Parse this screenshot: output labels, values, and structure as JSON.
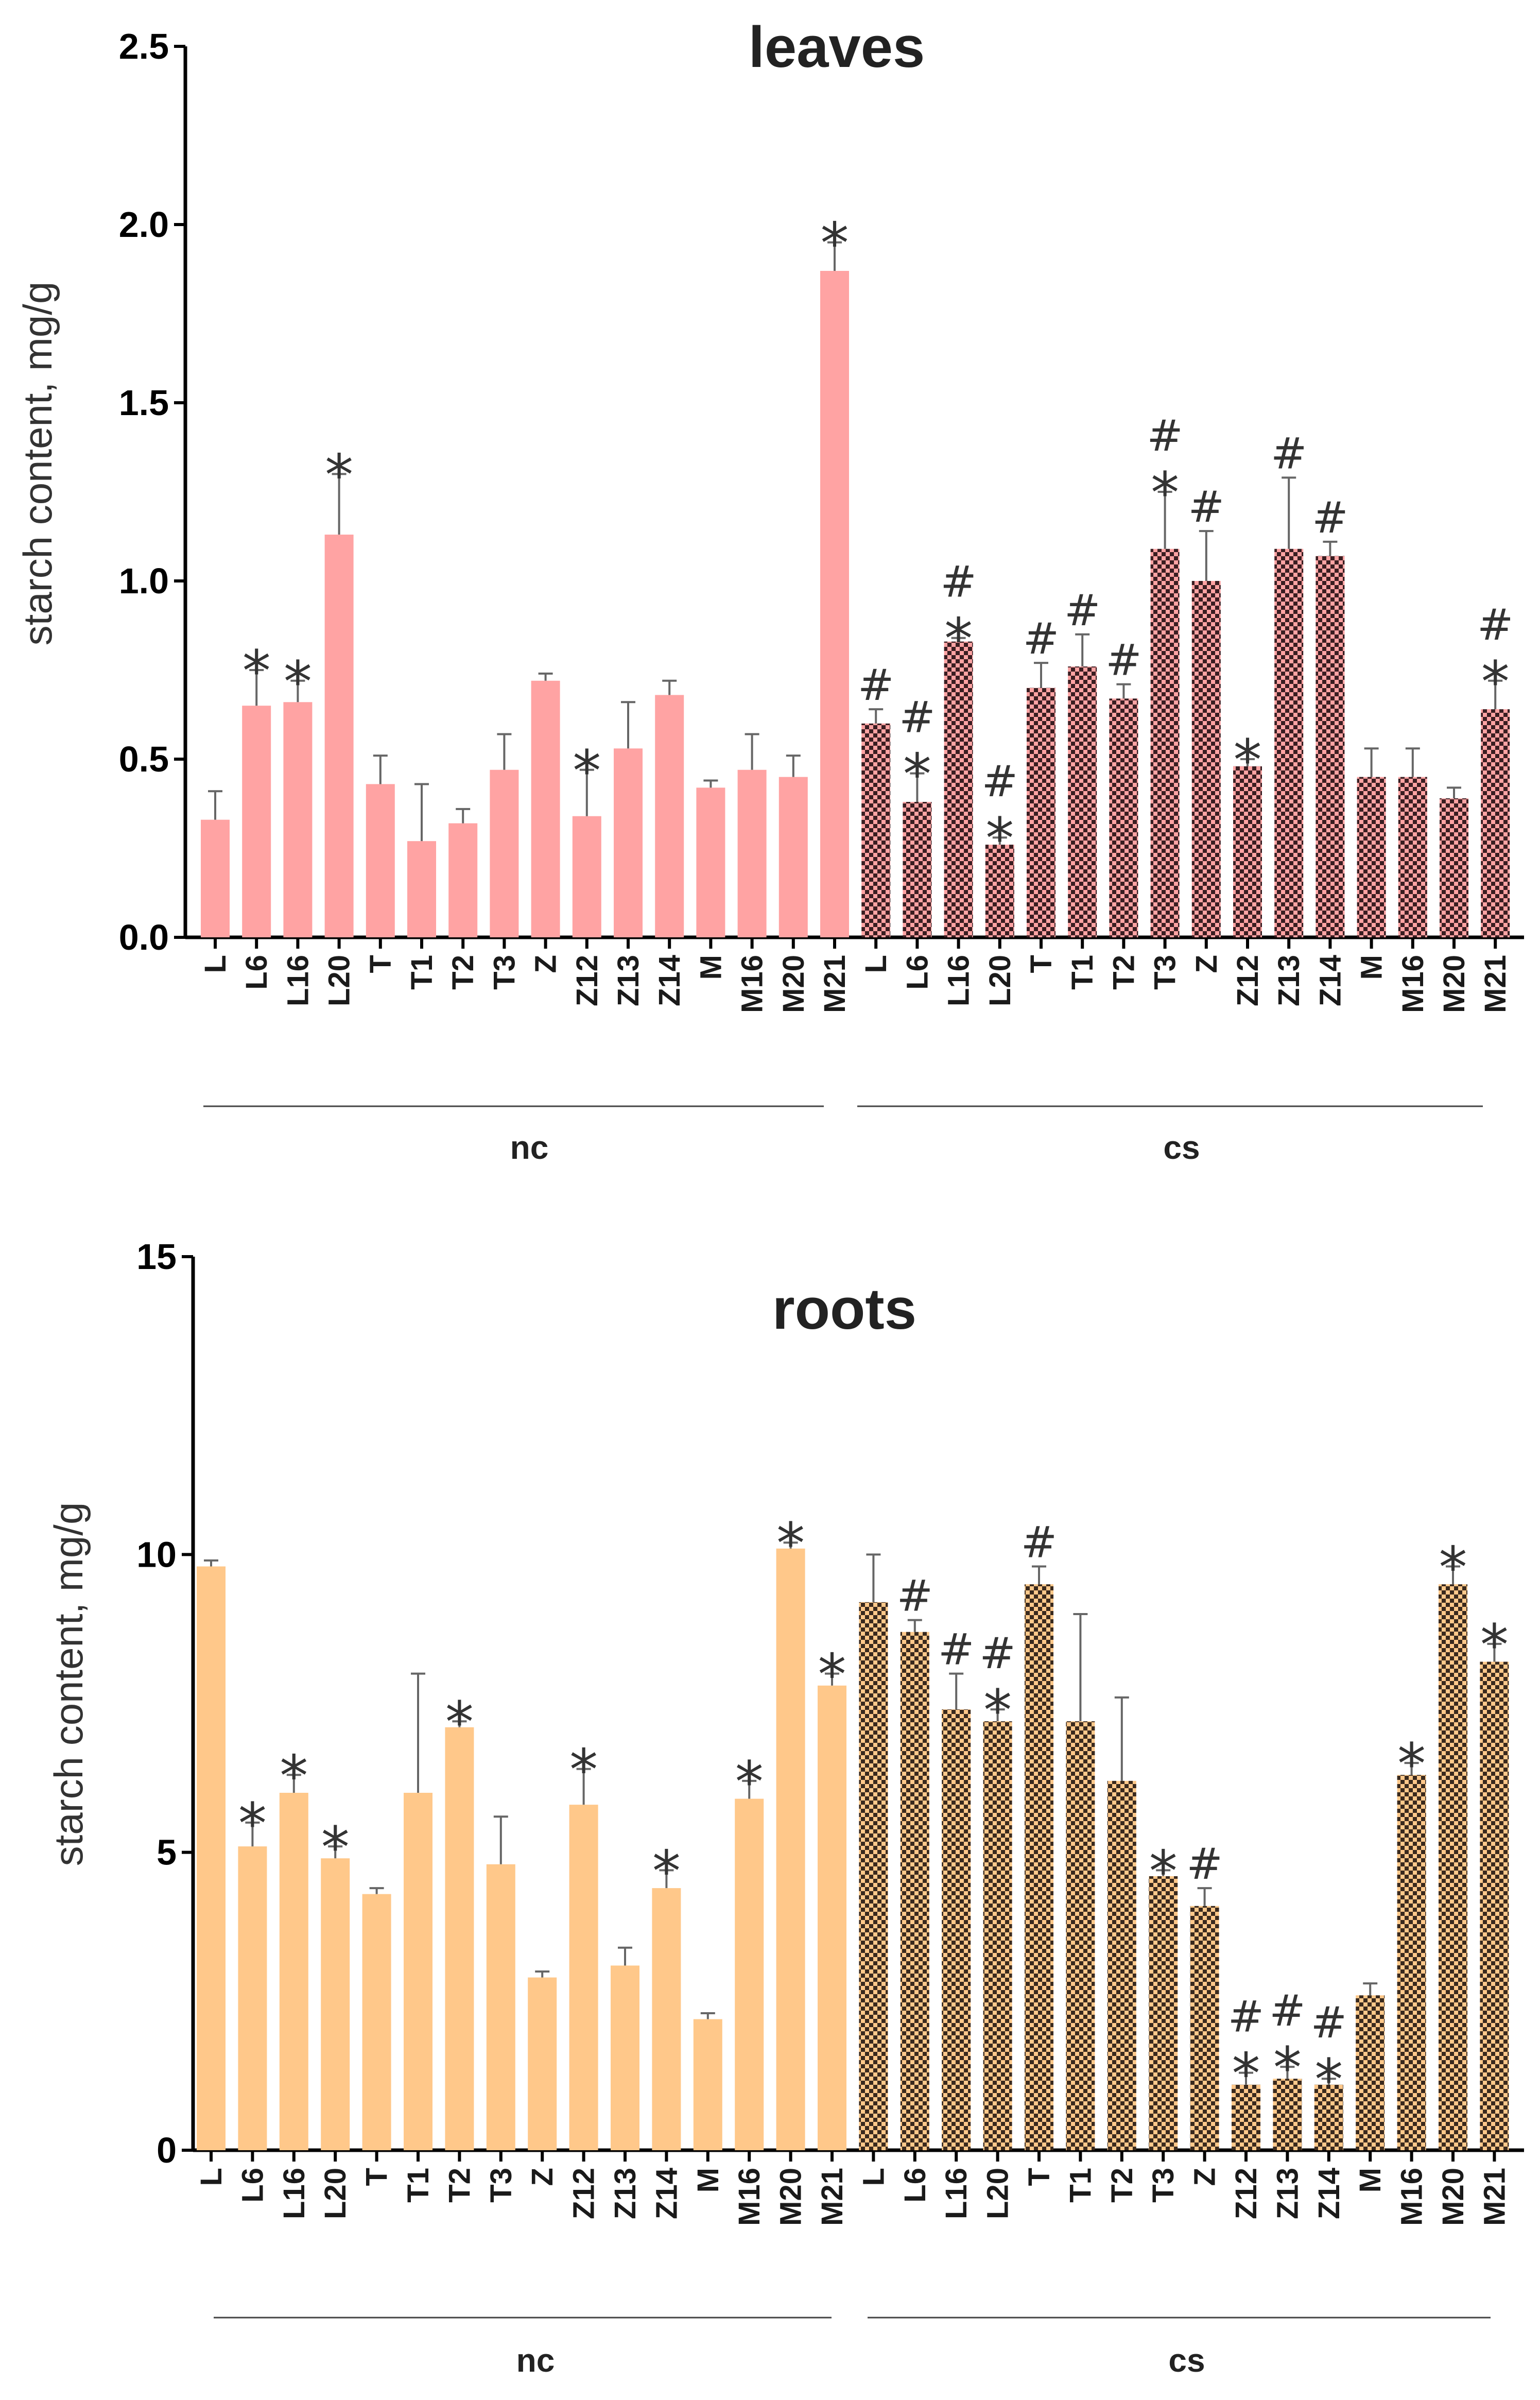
{
  "chart_data": [
    {
      "type": "bar",
      "title": "leaves",
      "ylabel": "starch content, mg/g",
      "xlabel": "",
      "ylim": [
        0,
        2.5
      ],
      "yticks": [
        "0.0",
        "0.5",
        "1.0",
        "1.5",
        "2.0",
        "2.5"
      ],
      "grid": false,
      "colors": {
        "nc": "#ffa3a3",
        "cs": "#ffa3a3",
        "cs_pattern_dark": "#3a1e22"
      },
      "groups": [
        {
          "name": "nc",
          "categories": [
            "L",
            "L6",
            "L16",
            "L20",
            "T",
            "T1",
            "T2",
            "T3",
            "Z",
            "Z12",
            "Z13",
            "Z14",
            "M",
            "M16",
            "M20",
            "M21"
          ],
          "values": [
            0.33,
            0.65,
            0.66,
            1.13,
            0.43,
            0.27,
            0.32,
            0.47,
            0.72,
            0.34,
            0.53,
            0.68,
            0.42,
            0.47,
            0.45,
            1.87
          ],
          "errors": [
            0.08,
            0.1,
            0.06,
            0.17,
            0.08,
            0.16,
            0.04,
            0.1,
            0.02,
            0.13,
            0.13,
            0.04,
            0.02,
            0.1,
            0.06,
            0.08
          ],
          "marks": [
            "",
            "*",
            "*",
            "*",
            "",
            "",
            "",
            "",
            "",
            "*",
            "",
            "",
            "",
            "",
            "",
            "*"
          ]
        },
        {
          "name": "cs",
          "categories": [
            "L",
            "L6",
            "L16",
            "L20",
            "T",
            "T1",
            "T2",
            "T3",
            "Z",
            "Z12",
            "Z13",
            "Z14",
            "M",
            "M16",
            "M20",
            "M21"
          ],
          "values": [
            0.6,
            0.38,
            0.83,
            0.26,
            0.7,
            0.76,
            0.67,
            1.09,
            1.0,
            0.48,
            1.09,
            1.07,
            0.45,
            0.45,
            0.39,
            0.64
          ],
          "errors": [
            0.04,
            0.08,
            0.01,
            0.02,
            0.07,
            0.09,
            0.04,
            0.16,
            0.14,
            0.02,
            0.2,
            0.04,
            0.08,
            0.08,
            0.03,
            0.08
          ],
          "marks": [
            "#",
            "#*",
            "#*",
            "#*",
            "#",
            "#",
            "#",
            "#*",
            "#",
            "*",
            "#",
            "#",
            "",
            "",
            "",
            "#*"
          ]
        }
      ]
    },
    {
      "type": "bar",
      "title": "roots",
      "ylabel": "starch content, mg/g",
      "xlabel": "",
      "ylim": [
        0,
        15
      ],
      "yticks": [
        "0",
        "5",
        "10",
        "15"
      ],
      "grid": false,
      "colors": {
        "nc": "#ffc88a",
        "cs": "#ffc88a",
        "cs_pattern_dark": "#3a2a1e"
      },
      "groups": [
        {
          "name": "nc",
          "categories": [
            "L",
            "L6",
            "L16",
            "L20",
            "T",
            "T1",
            "T2",
            "T3",
            "Z",
            "Z12",
            "Z13",
            "Z14",
            "M",
            "M16",
            "M20",
            "M21"
          ],
          "values": [
            9.8,
            5.1,
            6.0,
            4.9,
            4.3,
            6.0,
            7.1,
            4.8,
            2.9,
            5.8,
            3.1,
            4.4,
            2.2,
            5.9,
            10.1,
            7.8
          ],
          "errors": [
            0.1,
            0.4,
            0.3,
            0.2,
            0.1,
            2.0,
            0.1,
            0.8,
            0.1,
            0.6,
            0.3,
            0.3,
            0.1,
            0.3,
            0.1,
            0.2
          ],
          "marks": [
            "",
            "*",
            "*",
            "*",
            "",
            "",
            "*",
            "",
            "",
            "*",
            "",
            "*",
            "",
            "*",
            "*",
            "*"
          ]
        },
        {
          "name": "cs",
          "categories": [
            "L",
            "L6",
            "L16",
            "L20",
            "T",
            "T1",
            "T2",
            "T3",
            "Z",
            "Z12",
            "Z13",
            "Z14",
            "M",
            "M16",
            "M20",
            "M21"
          ],
          "values": [
            9.2,
            8.7,
            7.4,
            7.2,
            9.5,
            7.2,
            6.2,
            4.6,
            4.1,
            1.1,
            1.2,
            1.1,
            2.6,
            6.3,
            9.5,
            8.2
          ],
          "errors": [
            0.8,
            0.2,
            0.6,
            0.2,
            0.3,
            1.8,
            1.4,
            0.1,
            0.3,
            0.2,
            0.2,
            0.1,
            0.2,
            0.2,
            0.3,
            0.3
          ],
          "marks": [
            "",
            "#",
            "#",
            "#*",
            "#",
            "",
            "",
            "*",
            "#",
            "#*",
            "#*",
            "#*",
            "",
            "*",
            "*",
            "*"
          ]
        }
      ]
    }
  ]
}
